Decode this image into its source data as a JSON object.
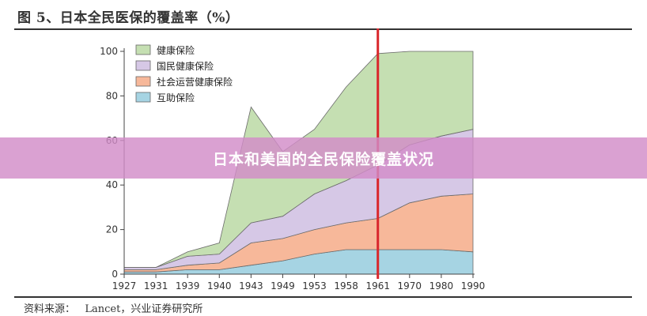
{
  "figure_title": "图 5、日本全民医保的覆盖率（%）",
  "source_text": "资料来源：   Lancet，兴业证券研究所",
  "banner_text": "日本和美国的全民保险覆盖状况",
  "colors": {
    "health": "#c5dfb2",
    "national": "#d6c8e6",
    "social": "#f7b89a",
    "mutual": "#a6d4e3",
    "marker": "#d9262b"
  },
  "chart_data": {
    "type": "area",
    "stacked": true,
    "categories": [
      "1927",
      "1931",
      "1939",
      "1940",
      "1943",
      "1949",
      "1953",
      "1958",
      "1961",
      "1970",
      "1980",
      "1990"
    ],
    "ylim": [
      0,
      100
    ],
    "yticks": [
      0,
      20,
      40,
      60,
      80,
      100
    ],
    "vertical_marker": "1961",
    "legend_position": "top-left",
    "series": [
      {
        "name": "互助保险",
        "color_key": "mutual",
        "values": [
          1,
          1,
          2,
          2,
          4,
          6,
          9,
          11,
          11,
          11,
          11,
          10
        ]
      },
      {
        "name": "社会运营健康保险",
        "color_key": "social",
        "values": [
          1,
          1,
          2,
          3,
          10,
          10,
          11,
          12,
          14,
          21,
          24,
          26
        ]
      },
      {
        "name": "国民健康保险",
        "color_key": "national",
        "values": [
          1,
          1,
          4,
          4,
          9,
          10,
          16,
          19,
          24,
          26,
          27,
          29
        ]
      },
      {
        "name": "健康保险",
        "color_key": "health",
        "values": [
          0,
          0,
          2,
          5,
          52,
          29,
          29,
          42,
          50,
          42,
          38,
          35
        ]
      }
    ]
  }
}
